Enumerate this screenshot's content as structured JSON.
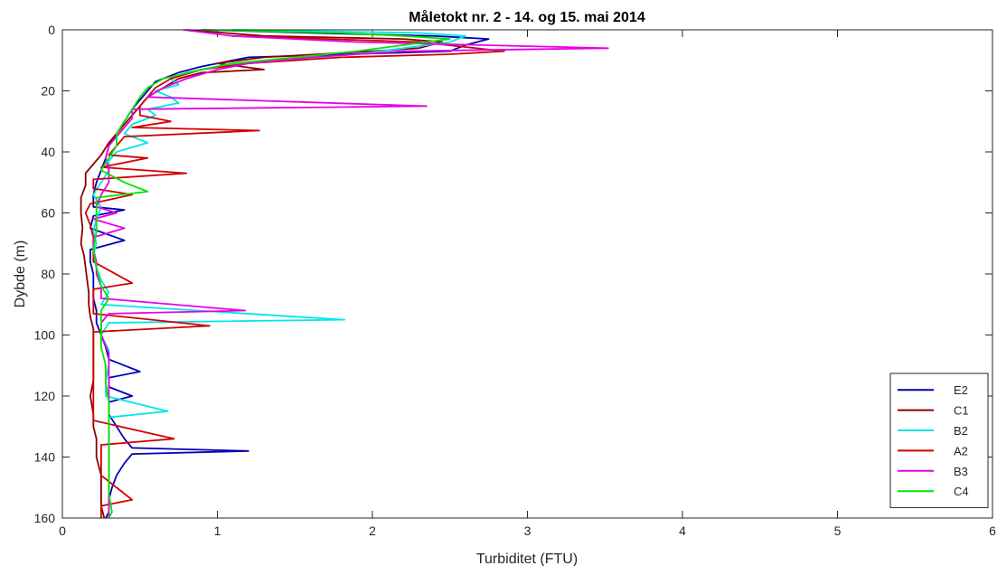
{
  "chart_data": {
    "type": "line",
    "title": "Måletokt nr. 2 - 14. og 15. mai 2014",
    "xlabel": "Turbiditet (FTU)",
    "ylabel": "Dybde (m)",
    "xlim": [
      0,
      6
    ],
    "ylim": [
      0,
      160
    ],
    "y_reversed": true,
    "x_ticks": [
      "0",
      "1",
      "2",
      "3",
      "4",
      "5",
      "6"
    ],
    "y_ticks": [
      "0",
      "20",
      "40",
      "60",
      "80",
      "100",
      "120",
      "140",
      "160"
    ],
    "grid": false,
    "legend_position": "bottom-right",
    "series": [
      {
        "name": "E2",
        "color": "#0000b4",
        "points": [
          [
            0.9,
            0
          ],
          [
            1.6,
            1
          ],
          [
            2.4,
            2
          ],
          [
            2.75,
            3
          ],
          [
            2.6,
            5
          ],
          [
            2.5,
            7
          ],
          [
            1.2,
            9
          ],
          [
            0.9,
            12
          ],
          [
            0.75,
            14
          ],
          [
            0.6,
            17
          ],
          [
            0.55,
            20
          ],
          [
            0.5,
            23
          ],
          [
            0.45,
            26
          ],
          [
            0.4,
            30
          ],
          [
            0.35,
            34
          ],
          [
            0.3,
            38
          ],
          [
            0.28,
            42
          ],
          [
            0.25,
            46
          ],
          [
            0.22,
            50
          ],
          [
            0.2,
            54
          ],
          [
            0.2,
            58
          ],
          [
            0.4,
            59
          ],
          [
            0.2,
            61
          ],
          [
            0.18,
            65
          ],
          [
            0.4,
            69
          ],
          [
            0.18,
            72
          ],
          [
            0.18,
            76
          ],
          [
            0.2,
            80
          ],
          [
            0.2,
            84
          ],
          [
            0.2,
            88
          ],
          [
            0.22,
            92
          ],
          [
            0.22,
            96
          ],
          [
            0.25,
            100
          ],
          [
            0.28,
            104
          ],
          [
            0.3,
            108
          ],
          [
            0.5,
            112
          ],
          [
            0.3,
            114
          ],
          [
            0.3,
            117
          ],
          [
            0.45,
            120
          ],
          [
            0.3,
            122
          ],
          [
            0.3,
            126
          ],
          [
            0.35,
            130
          ],
          [
            0.4,
            134
          ],
          [
            0.45,
            137
          ],
          [
            1.2,
            138
          ],
          [
            0.45,
            139
          ],
          [
            0.4,
            142
          ],
          [
            0.35,
            146
          ],
          [
            0.32,
            150
          ],
          [
            0.3,
            154
          ],
          [
            0.3,
            158
          ],
          [
            0.28,
            160
          ]
        ]
      },
      {
        "name": "C1",
        "color": "#8b0000",
        "points": [
          [
            0.8,
            0
          ],
          [
            1.3,
            2
          ],
          [
            2.2,
            3
          ],
          [
            2.45,
            4
          ],
          [
            2.3,
            6
          ],
          [
            2.0,
            7
          ],
          [
            1.3,
            9
          ],
          [
            1.0,
            11
          ],
          [
            1.3,
            13
          ],
          [
            0.9,
            14
          ],
          [
            0.75,
            16
          ],
          [
            0.65,
            19
          ],
          [
            0.55,
            22
          ],
          [
            0.5,
            25
          ],
          [
            0.45,
            28
          ],
          [
            0.4,
            31
          ],
          [
            0.35,
            34
          ],
          [
            0.3,
            37
          ],
          [
            0.25,
            41
          ],
          [
            0.2,
            44
          ],
          [
            0.15,
            47
          ],
          [
            0.15,
            51
          ],
          [
            0.12,
            55
          ],
          [
            0.12,
            60
          ],
          [
            0.13,
            65
          ],
          [
            0.12,
            70
          ],
          [
            0.14,
            74
          ],
          [
            0.15,
            78
          ],
          [
            0.16,
            82
          ],
          [
            0.17,
            86
          ],
          [
            0.17,
            90
          ],
          [
            0.18,
            94
          ],
          [
            0.2,
            98
          ],
          [
            0.2,
            102
          ],
          [
            0.2,
            108
          ],
          [
            0.2,
            115
          ],
          [
            0.18,
            120
          ],
          [
            0.2,
            126
          ],
          [
            0.2,
            130
          ],
          [
            0.22,
            134
          ],
          [
            0.22,
            140
          ],
          [
            0.25,
            146
          ],
          [
            0.25,
            152
          ],
          [
            0.25,
            156
          ],
          [
            0.27,
            160
          ]
        ]
      },
      {
        "name": "B2",
        "color": "#00e6e6",
        "points": [
          [
            1.1,
            0
          ],
          [
            2.3,
            1
          ],
          [
            2.6,
            2
          ],
          [
            2.5,
            4
          ],
          [
            2.2,
            6
          ],
          [
            1.9,
            8
          ],
          [
            1.4,
            10
          ],
          [
            1.0,
            12
          ],
          [
            0.8,
            14
          ],
          [
            0.7,
            16
          ],
          [
            0.75,
            18
          ],
          [
            0.6,
            20
          ],
          [
            0.7,
            22
          ],
          [
            0.75,
            24
          ],
          [
            0.55,
            26
          ],
          [
            0.6,
            28
          ],
          [
            0.45,
            31
          ],
          [
            0.4,
            34
          ],
          [
            0.55,
            37
          ],
          [
            0.35,
            40
          ],
          [
            0.3,
            43
          ],
          [
            0.3,
            46
          ],
          [
            0.25,
            50
          ],
          [
            0.2,
            54
          ],
          [
            0.25,
            58
          ],
          [
            0.22,
            62
          ],
          [
            0.2,
            66
          ],
          [
            0.22,
            70
          ],
          [
            0.2,
            74
          ],
          [
            0.22,
            78
          ],
          [
            0.25,
            82
          ],
          [
            0.3,
            86
          ],
          [
            0.25,
            90
          ],
          [
            1.82,
            95
          ],
          [
            0.3,
            96
          ],
          [
            0.25,
            100
          ],
          [
            0.3,
            105
          ],
          [
            0.3,
            110
          ],
          [
            0.28,
            115
          ],
          [
            0.28,
            120
          ],
          [
            0.68,
            125
          ],
          [
            0.3,
            127
          ],
          [
            0.3,
            132
          ],
          [
            0.3,
            138
          ],
          [
            0.3,
            144
          ],
          [
            0.3,
            150
          ],
          [
            0.3,
            156
          ],
          [
            0.3,
            160
          ]
        ]
      },
      {
        "name": "A2",
        "color": "#d00000",
        "points": [
          [
            1.1,
            2
          ],
          [
            2.3,
            4
          ],
          [
            2.85,
            7
          ],
          [
            2.5,
            8
          ],
          [
            1.8,
            9
          ],
          [
            1.2,
            11
          ],
          [
            0.9,
            13
          ],
          [
            0.7,
            16
          ],
          [
            0.6,
            19
          ],
          [
            0.55,
            22
          ],
          [
            0.5,
            25
          ],
          [
            0.5,
            28
          ],
          [
            0.7,
            30
          ],
          [
            0.45,
            32
          ],
          [
            1.27,
            33
          ],
          [
            0.4,
            35
          ],
          [
            0.35,
            38
          ],
          [
            0.3,
            41
          ],
          [
            0.55,
            42
          ],
          [
            0.25,
            45
          ],
          [
            0.8,
            47
          ],
          [
            0.2,
            49
          ],
          [
            0.2,
            52
          ],
          [
            0.45,
            54
          ],
          [
            0.18,
            57
          ],
          [
            0.15,
            60
          ],
          [
            0.18,
            64
          ],
          [
            0.2,
            68
          ],
          [
            0.2,
            72
          ],
          [
            0.2,
            76
          ],
          [
            0.45,
            83
          ],
          [
            0.2,
            85
          ],
          [
            0.2,
            89
          ],
          [
            0.2,
            93
          ],
          [
            0.95,
            97
          ],
          [
            0.2,
            99
          ],
          [
            0.2,
            104
          ],
          [
            0.2,
            112
          ],
          [
            0.2,
            120
          ],
          [
            0.2,
            128
          ],
          [
            0.72,
            134
          ],
          [
            0.25,
            136
          ],
          [
            0.25,
            140
          ],
          [
            0.25,
            146
          ],
          [
            0.45,
            154
          ],
          [
            0.25,
            156
          ],
          [
            0.25,
            160
          ]
        ]
      },
      {
        "name": "B3",
        "color": "#e600e6",
        "points": [
          [
            0.78,
            0
          ],
          [
            1.1,
            2
          ],
          [
            1.9,
            4
          ],
          [
            3.52,
            6
          ],
          [
            2.2,
            7
          ],
          [
            1.6,
            9
          ],
          [
            1.2,
            11
          ],
          [
            1.0,
            13
          ],
          [
            0.8,
            16
          ],
          [
            0.65,
            19
          ],
          [
            0.55,
            22
          ],
          [
            2.35,
            25
          ],
          [
            0.45,
            26
          ],
          [
            0.45,
            29
          ],
          [
            0.4,
            32
          ],
          [
            0.35,
            35
          ],
          [
            0.3,
            38
          ],
          [
            0.28,
            42
          ],
          [
            0.3,
            46
          ],
          [
            0.3,
            50
          ],
          [
            0.25,
            54
          ],
          [
            0.22,
            58
          ],
          [
            0.35,
            60
          ],
          [
            0.2,
            62
          ],
          [
            0.4,
            65
          ],
          [
            0.2,
            68
          ],
          [
            0.2,
            72
          ],
          [
            0.22,
            76
          ],
          [
            0.22,
            80
          ],
          [
            0.25,
            84
          ],
          [
            0.25,
            88
          ],
          [
            1.18,
            92
          ],
          [
            0.3,
            93
          ],
          [
            0.25,
            96
          ],
          [
            0.25,
            100
          ],
          [
            0.3,
            106
          ],
          [
            0.3,
            112
          ],
          [
            0.3,
            118
          ],
          [
            0.3,
            124
          ],
          [
            0.3,
            130
          ],
          [
            0.3,
            136
          ],
          [
            0.3,
            142
          ],
          [
            0.3,
            148
          ],
          [
            0.3,
            154
          ],
          [
            0.3,
            160
          ]
        ]
      },
      {
        "name": "C4",
        "color": "#00e600",
        "points": [
          [
            0.9,
            0
          ],
          [
            1.8,
            1
          ],
          [
            2.2,
            2
          ],
          [
            2.5,
            3
          ],
          [
            2.2,
            5
          ],
          [
            1.9,
            7
          ],
          [
            1.5,
            9
          ],
          [
            1.1,
            11
          ],
          [
            0.9,
            13
          ],
          [
            0.65,
            16
          ],
          [
            0.55,
            19
          ],
          [
            0.5,
            22
          ],
          [
            0.45,
            26
          ],
          [
            0.4,
            30
          ],
          [
            0.35,
            34
          ],
          [
            0.35,
            38
          ],
          [
            0.3,
            42
          ],
          [
            0.25,
            46
          ],
          [
            0.4,
            50
          ],
          [
            0.55,
            53
          ],
          [
            0.22,
            55
          ],
          [
            0.22,
            60
          ],
          [
            0.22,
            66
          ],
          [
            0.2,
            72
          ],
          [
            0.22,
            78
          ],
          [
            0.25,
            84
          ],
          [
            0.3,
            88
          ],
          [
            0.25,
            92
          ],
          [
            0.25,
            98
          ],
          [
            0.25,
            104
          ],
          [
            0.28,
            110
          ],
          [
            0.28,
            116
          ],
          [
            0.3,
            122
          ],
          [
            0.3,
            128
          ],
          [
            0.3,
            134
          ],
          [
            0.3,
            140
          ],
          [
            0.3,
            146
          ],
          [
            0.3,
            152
          ],
          [
            0.32,
            158
          ],
          [
            0.3,
            160
          ]
        ]
      }
    ]
  }
}
